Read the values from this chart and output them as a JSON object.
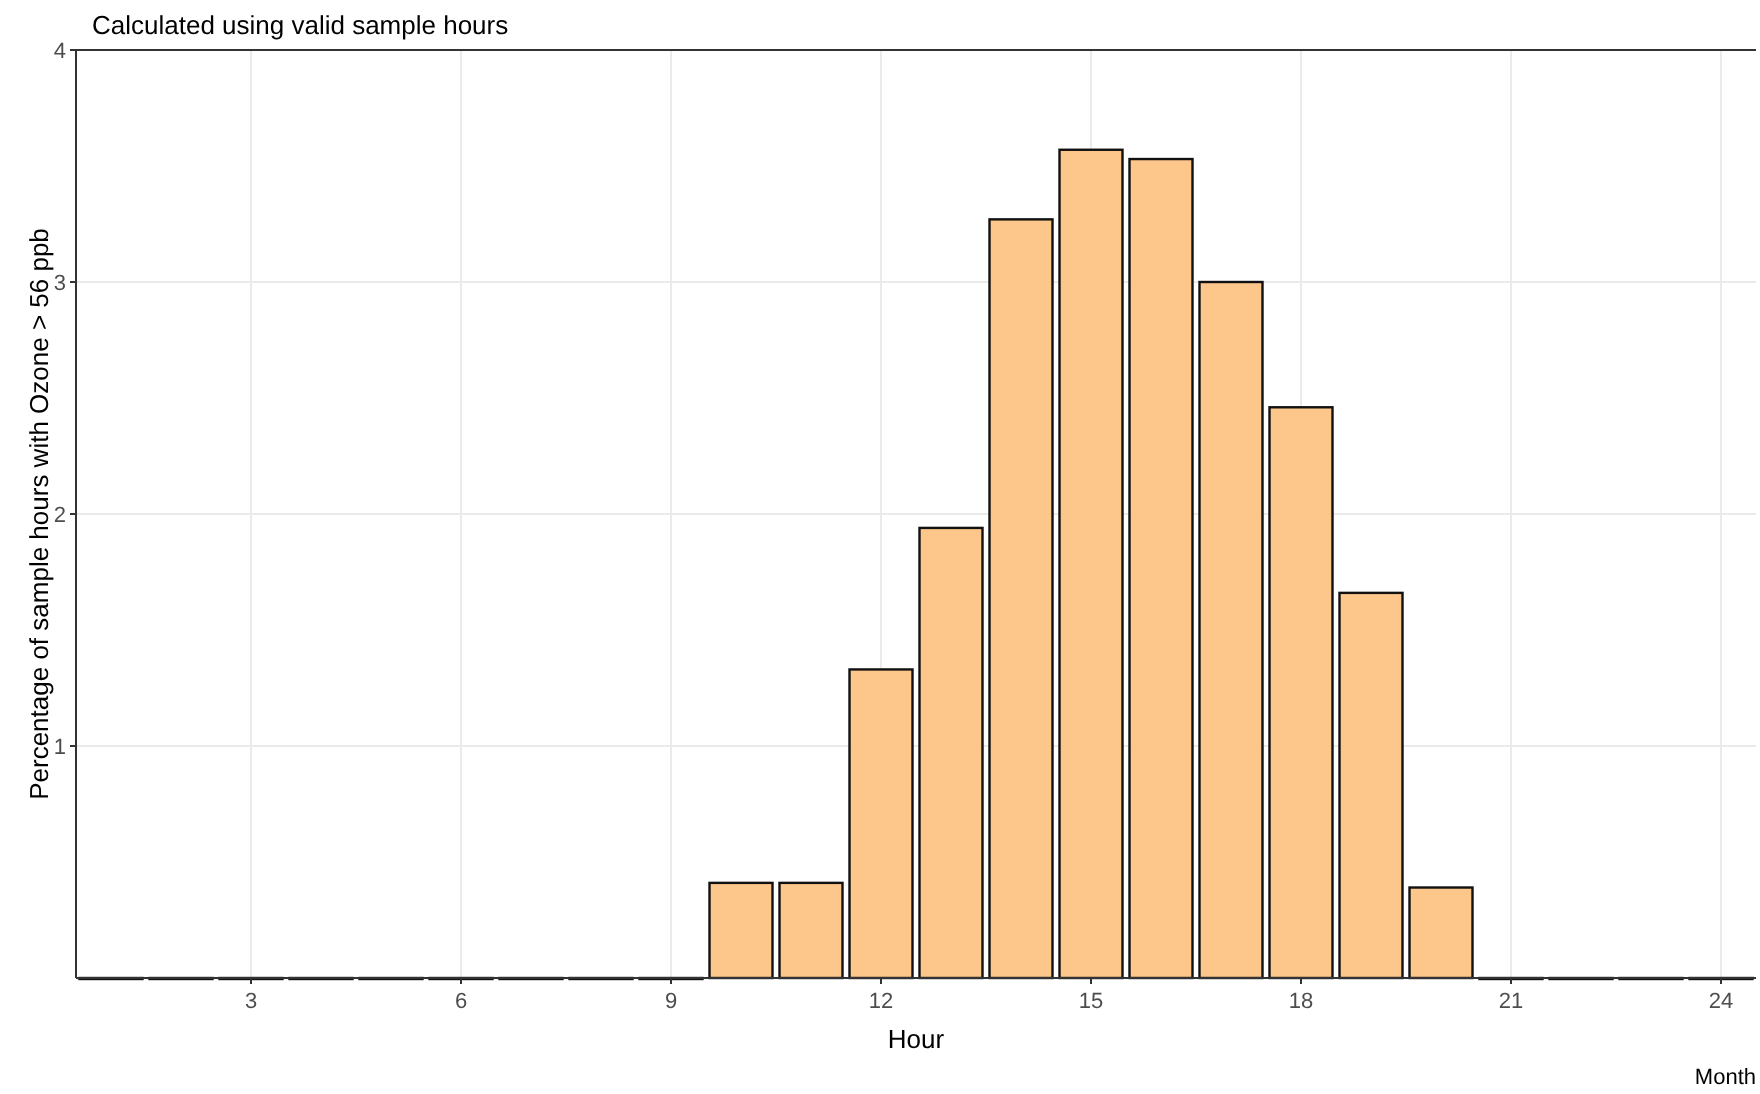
{
  "chart_data": {
    "type": "bar",
    "title": "Calculated using valid sample hours",
    "xlabel": "Hour",
    "ylabel": "Percentage of sample hours with Ozone > 56 ppb",
    "annotations": [
      "Month"
    ],
    "x": [
      1,
      2,
      3,
      4,
      5,
      6,
      7,
      8,
      9,
      10,
      11,
      12,
      13,
      14,
      15,
      16,
      17,
      18,
      19,
      20,
      21,
      22,
      23,
      24
    ],
    "values": [
      0,
      0,
      0,
      0,
      0,
      0,
      0,
      0,
      0,
      0.41,
      0.41,
      1.33,
      1.94,
      3.27,
      3.57,
      3.53,
      3.0,
      2.46,
      1.66,
      0.39,
      0,
      0,
      0,
      0
    ],
    "color": "#fdc68a",
    "xlim": [
      0.5,
      24.5
    ],
    "xticks": [
      3,
      6,
      9,
      12,
      15,
      18,
      21,
      24
    ],
    "ylim": [
      0,
      4
    ],
    "yticks": [
      1,
      2,
      3,
      4
    ],
    "grid": true
  }
}
